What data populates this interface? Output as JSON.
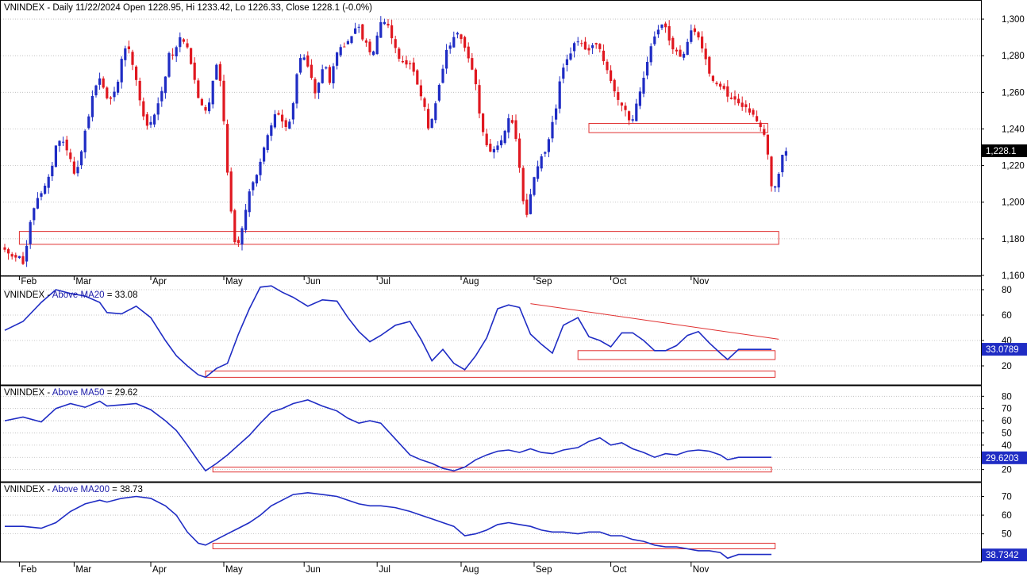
{
  "colors": {
    "up": "#1f2cc4",
    "down": "#e01820",
    "indicator": "#1f2cc4",
    "annotation": "#e03030",
    "background": "#ffffff"
  },
  "chart_data": [
    {
      "type": "candlestick",
      "title_prefix": "VNINDEX - Daily 11/22/2024 Open 1228.95, Hi 1233.42, Lo 1226.33, Close 1228.1 (-0.0%)",
      "last_value_label": "1,228.1",
      "ylim": [
        1160,
        1310
      ],
      "y_ticks": [
        1160,
        1180,
        1200,
        1220,
        1240,
        1260,
        1280,
        1300
      ],
      "y_tick_labels": [
        "1,160",
        "1,180",
        "1,200",
        "1,220",
        "1,240",
        "1,260",
        "1,280",
        "1,300"
      ],
      "months": [
        "Feb",
        "Mar",
        "Apr",
        "May",
        "Jun",
        "Jul",
        "Aug",
        "Sep",
        "Oct",
        "Nov"
      ],
      "month_start_index": [
        4,
        19,
        40,
        60,
        82,
        102,
        125,
        145,
        166,
        188
      ],
      "close_series": [
        1174,
        1171,
        1170,
        1172,
        1165,
        1182,
        1196,
        1203,
        1206,
        1211,
        1218,
        1232,
        1233,
        1231,
        1222,
        1214,
        1222,
        1238,
        1249,
        1262,
        1268,
        1263,
        1255,
        1257,
        1266,
        1280,
        1288,
        1276,
        1266,
        1252,
        1240,
        1244,
        1248,
        1258,
        1268,
        1282,
        1279,
        1291,
        1287,
        1285,
        1270,
        1257,
        1252,
        1248,
        1264,
        1276,
        1264,
        1227,
        1196,
        1176,
        1180,
        1194,
        1205,
        1212,
        1220,
        1228,
        1237,
        1246,
        1249,
        1244,
        1239,
        1249,
        1268,
        1282,
        1277,
        1269,
        1258,
        1269,
        1278,
        1266,
        1276,
        1284,
        1285,
        1289,
        1293,
        1296,
        1290,
        1285,
        1280,
        1290,
        1300,
        1299,
        1292,
        1284,
        1278,
        1274,
        1276,
        1272,
        1261,
        1254,
        1240,
        1247,
        1259,
        1272,
        1284,
        1287,
        1292,
        1289,
        1282,
        1275,
        1266,
        1246,
        1234,
        1228,
        1228,
        1232,
        1236,
        1247,
        1243,
        1227,
        1202,
        1192,
        1210,
        1218,
        1224,
        1228,
        1240,
        1249,
        1267,
        1276,
        1281,
        1286,
        1288,
        1284,
        1282,
        1286,
        1288,
        1278,
        1271,
        1265,
        1257,
        1254,
        1250,
        1240,
        1251,
        1261,
        1271,
        1282,
        1291,
        1296,
        1298,
        1289,
        1284,
        1281,
        1280,
        1287,
        1294,
        1292,
        1286,
        1278,
        1268,
        1265,
        1264,
        1261,
        1256,
        1256,
        1253,
        1253,
        1250,
        1247,
        1244,
        1241,
        1229,
        1205,
        1210,
        1224,
        1228
      ],
      "support_zones": [
        {
          "start_index": 4,
          "end_index": 212,
          "low": 1177,
          "high": 1184
        },
        {
          "start_index": 160,
          "end_index": 209,
          "low": 1238,
          "high": 1243
        }
      ]
    },
    {
      "type": "line",
      "series_label": "VNINDEX - Above MA20 = 33.08",
      "header_prefix": "VNINDEX - ",
      "header_name": "Above MA20",
      "header_value": " = 33.08",
      "last_value_label": "33.0789",
      "ylim": [
        5,
        90
      ],
      "y_ticks": [
        20,
        40,
        60,
        80
      ],
      "x": [
        0,
        5,
        10,
        14,
        18,
        22,
        26,
        28,
        32,
        36,
        40,
        44,
        47,
        50,
        53,
        55,
        58,
        61,
        64,
        67,
        70,
        73,
        76,
        79,
        83,
        87,
        91,
        94,
        97,
        100,
        103,
        107,
        111,
        114,
        117,
        120,
        123,
        126,
        129,
        132,
        135,
        138,
        141,
        144,
        147,
        150,
        153,
        157,
        160,
        163,
        166,
        169,
        172,
        175,
        178,
        181,
        184,
        187,
        190,
        193,
        196,
        198,
        201,
        204,
        207,
        210
      ],
      "y": [
        48,
        55,
        70,
        80,
        77,
        75,
        70,
        62,
        61,
        67,
        58,
        40,
        28,
        20,
        13,
        11,
        18,
        22,
        45,
        65,
        82,
        83,
        78,
        74,
        67,
        72,
        71,
        58,
        47,
        39,
        44,
        52,
        55,
        41,
        24,
        33,
        22,
        17,
        28,
        42,
        65,
        68,
        66,
        45,
        37,
        30,
        52,
        58,
        43,
        40,
        35,
        46,
        46,
        40,
        32,
        32,
        36,
        44,
        47,
        38,
        30,
        25,
        33,
        33,
        33,
        33
      ],
      "trendline": {
        "start_index": 144,
        "end_index": 212,
        "start_value": 69,
        "end_value": 41
      },
      "support_zones": [
        {
          "start_index": 157,
          "end_index": 211,
          "low": 25,
          "high": 32
        },
        {
          "start_index": 55,
          "end_index": 211,
          "low": 11,
          "high": 16
        }
      ]
    },
    {
      "type": "line",
      "series_label": "VNINDEX - Above MA50 = 29.62",
      "header_prefix": "VNINDEX - ",
      "header_name": "Above MA50",
      "header_value": " = 29.62",
      "last_value_label": "29.6203",
      "ylim": [
        10,
        88
      ],
      "y_ticks": [
        20,
        30,
        40,
        50,
        60,
        70,
        80
      ],
      "x": [
        0,
        5,
        10,
        14,
        18,
        22,
        26,
        28,
        32,
        36,
        40,
        44,
        47,
        50,
        53,
        55,
        58,
        61,
        64,
        67,
        70,
        73,
        76,
        79,
        83,
        87,
        91,
        94,
        97,
        100,
        103,
        107,
        111,
        114,
        117,
        120,
        123,
        126,
        129,
        132,
        135,
        138,
        141,
        144,
        147,
        150,
        153,
        157,
        160,
        163,
        166,
        169,
        172,
        175,
        178,
        181,
        184,
        187,
        190,
        193,
        196,
        198,
        201,
        204,
        207,
        210
      ],
      "y": [
        60,
        63,
        59,
        70,
        74,
        71,
        76,
        72,
        73,
        74,
        69,
        60,
        52,
        40,
        27,
        19,
        25,
        32,
        40,
        48,
        58,
        67,
        70,
        74,
        77,
        72,
        68,
        62,
        58,
        60,
        58,
        45,
        32,
        28,
        25,
        21,
        19,
        22,
        28,
        32,
        35,
        36,
        34,
        37,
        34,
        33,
        36,
        38,
        43,
        46,
        40,
        42,
        37,
        34,
        30,
        33,
        32,
        35,
        36,
        35,
        32,
        28,
        30,
        30,
        30,
        30
      ],
      "support_zones": [
        {
          "start_index": 57,
          "end_index": 210,
          "low": 18,
          "high": 22
        }
      ]
    },
    {
      "type": "line",
      "series_label": "VNINDEX - Above MA200 = 38.73",
      "header_prefix": "VNINDEX - ",
      "header_name": "Above MA200",
      "header_value": " = 38.73",
      "last_value_label": "38.7342",
      "ylim": [
        35,
        77
      ],
      "y_ticks": [
        50,
        60,
        70
      ],
      "x": [
        0,
        5,
        10,
        14,
        18,
        22,
        26,
        28,
        32,
        36,
        40,
        44,
        47,
        50,
        53,
        55,
        58,
        61,
        64,
        67,
        70,
        73,
        76,
        79,
        83,
        87,
        91,
        94,
        97,
        100,
        103,
        107,
        111,
        114,
        117,
        120,
        123,
        126,
        129,
        132,
        135,
        138,
        141,
        144,
        147,
        150,
        153,
        157,
        160,
        163,
        166,
        169,
        172,
        175,
        178,
        181,
        184,
        187,
        190,
        193,
        196,
        198,
        201,
        204,
        207,
        210
      ],
      "y": [
        54,
        54,
        53,
        56,
        62,
        66,
        68,
        67,
        69,
        70,
        69,
        65,
        60,
        51,
        45,
        44,
        47,
        50,
        53,
        56,
        60,
        65,
        68,
        71,
        72,
        71,
        70,
        68,
        66,
        65,
        65,
        64,
        62,
        60,
        58,
        56,
        54,
        49,
        50,
        52,
        55,
        56,
        55,
        54,
        52,
        51,
        51,
        50,
        51,
        51,
        49,
        49,
        47,
        46,
        44,
        43,
        43,
        42,
        41,
        41,
        40,
        37,
        39,
        39,
        39,
        39
      ],
      "support_zones": [
        {
          "start_index": 57,
          "end_index": 211,
          "low": 42,
          "high": 45
        }
      ]
    }
  ]
}
